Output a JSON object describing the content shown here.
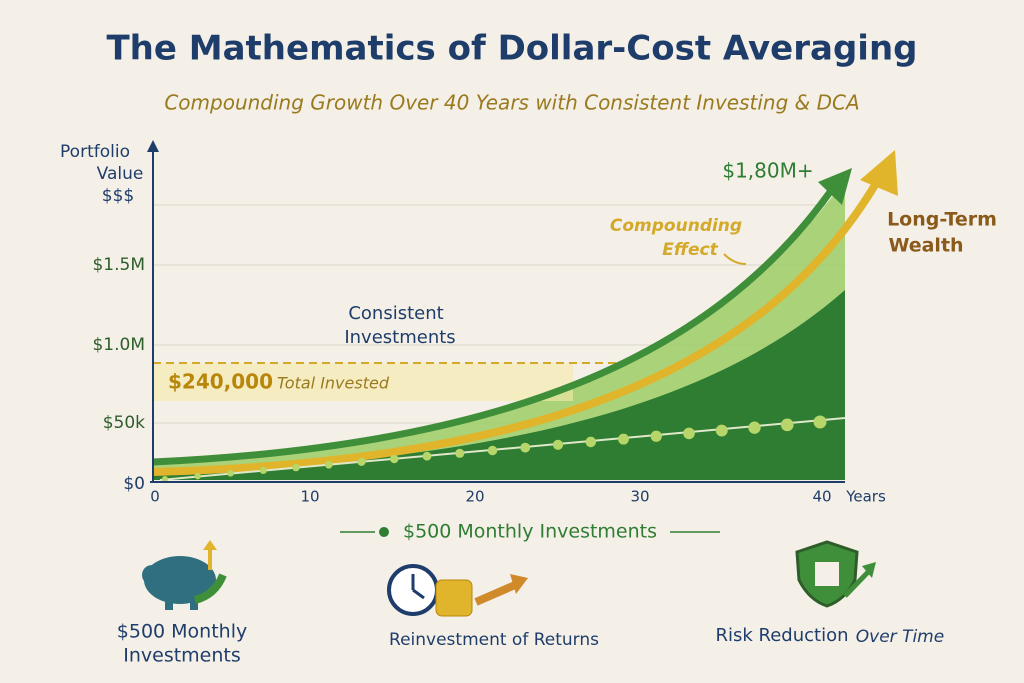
{
  "header": {
    "title": "The Mathematics of Dollar-Cost Averaging",
    "subtitle": "Compounding Growth Over 40 Years with Consistent Investing & DCA"
  },
  "chart": {
    "y_axis_label": [
      "Portfolio",
      "Value",
      "$$$"
    ],
    "y_tick_labels": [
      "$1.5M",
      "$1.0M",
      "$50k",
      "$0"
    ],
    "x_tick_labels": [
      "0",
      "10",
      "20",
      "30",
      "40"
    ],
    "x_axis_label": "Years",
    "annotations": {
      "peak": "$1,80M+",
      "compounding": [
        "Compounding",
        "Effect"
      ],
      "wealth": [
        "Long-Term",
        "Wealth"
      ],
      "consistent": [
        "Consistent",
        "Investments"
      ],
      "invested_amount": "$240,000",
      "invested_text": "Total Invested"
    },
    "footer_label": "$500 Monthly Investments"
  },
  "features": [
    {
      "label": [
        "$500 Monthly",
        "Investments"
      ]
    },
    {
      "label": [
        "Reinvestment of Returns"
      ]
    },
    {
      "label": [
        "Risk Reduction",
        "Over Time"
      ]
    }
  ]
}
